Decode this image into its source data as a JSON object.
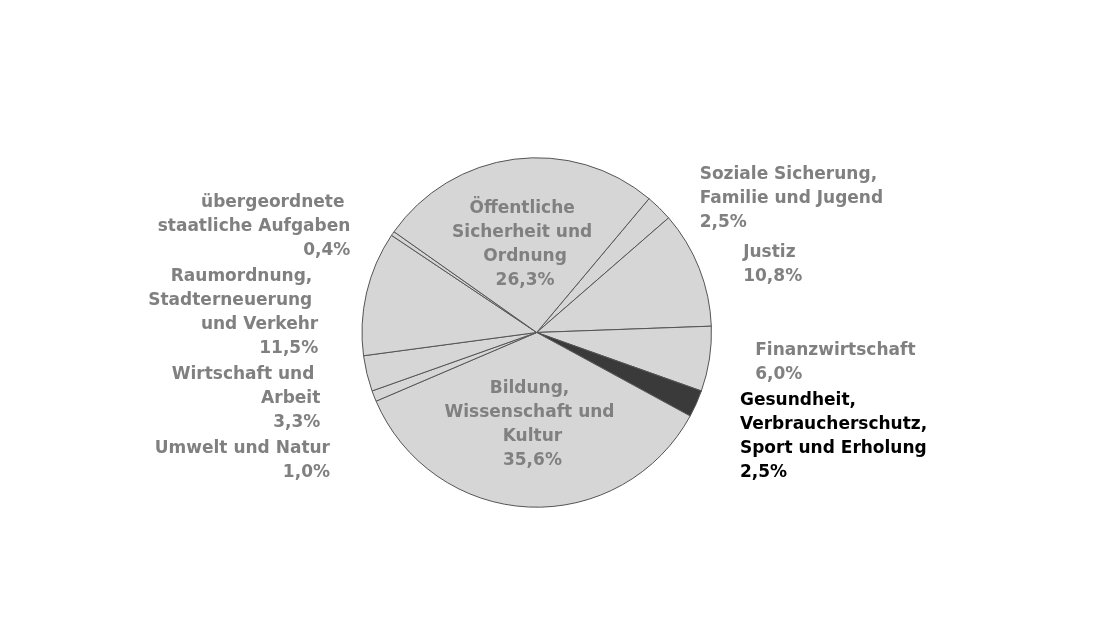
{
  "chart_data": {
    "type": "pie",
    "categories": [
      "Soziale Sicherung, Familie und Jugend",
      "Justiz",
      "Finanzwirtschaft",
      "Gesundheit, Verbraucherschutz, Sport und Erholung",
      "Bildung, Wissenschaft und Kultur",
      "Umwelt und Natur",
      "Wirtschaft und Arbeit",
      "Raumordnung, Stadterneuerung und Verkehr",
      "übergeordnete staatliche Aufgaben",
      "Öffentliche Sicherheit und Ordnung"
    ],
    "values": [
      2.5,
      10.8,
      6.0,
      2.5,
      35.6,
      1.0,
      3.3,
      11.5,
      0.4,
      26.3
    ],
    "value_labels": [
      "2,5%",
      "10,8%",
      "6,0%",
      "2,5%",
      "35,6%",
      "1,0%",
      "3,3%",
      "11,5%",
      "0,4%",
      "26,3%"
    ],
    "colors": [
      "#d6d6d6",
      "#d6d6d6",
      "#d6d6d6",
      "#3a3a3a",
      "#d6d6d6",
      "#d6d6d6",
      "#d6d6d6",
      "#d6d6d6",
      "#d6d6d6",
      "#d6d6d6"
    ]
  }
}
